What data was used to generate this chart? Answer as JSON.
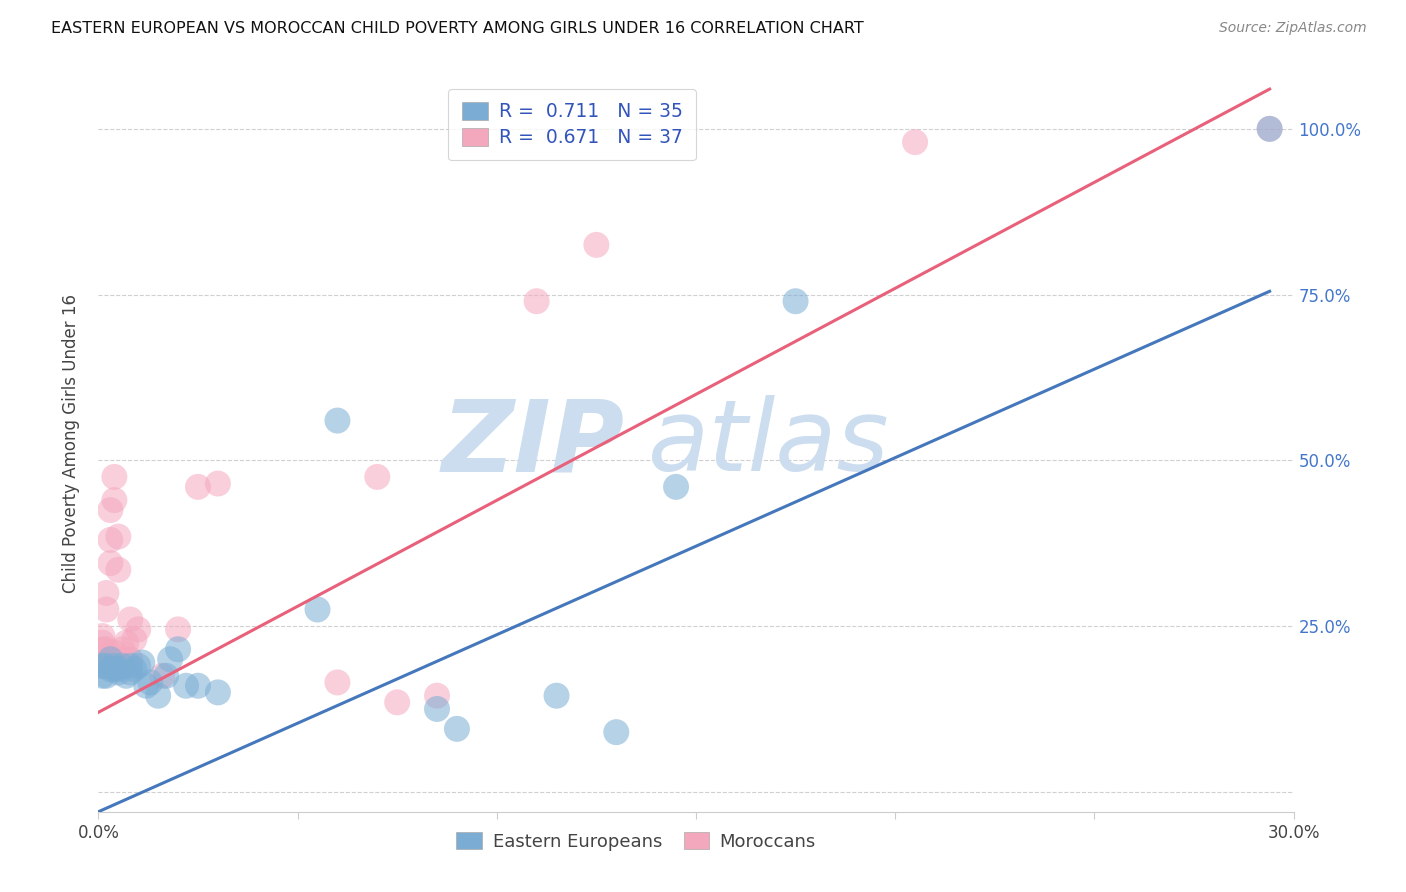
{
  "title": "EASTERN EUROPEAN VS MOROCCAN CHILD POVERTY AMONG GIRLS UNDER 16 CORRELATION CHART",
  "source": "Source: ZipAtlas.com",
  "ylabel": "Child Poverty Among Girls Under 16",
  "xlim": [
    0.0,
    0.3
  ],
  "ylim": [
    -0.03,
    1.08
  ],
  "ytick_positions": [
    0.0,
    0.25,
    0.5,
    0.75,
    1.0
  ],
  "xtick_positions": [
    0.0,
    0.05,
    0.1,
    0.15,
    0.2,
    0.25,
    0.3
  ],
  "xtick_labels": [
    "0.0%",
    "",
    "",
    "",
    "",
    "",
    "30.0%"
  ],
  "ytick_labels_right": [
    "",
    "25.0%",
    "50.0%",
    "75.0%",
    "100.0%"
  ],
  "blue_color": "#7BADD4",
  "pink_color": "#F4A8BE",
  "blue_line_color": "#4477BB",
  "pink_line_color": "#E8607A",
  "blue_r": "0.711",
  "blue_n": "35",
  "pink_r": "0.671",
  "pink_n": "37",
  "blue_scatter_x": [
    0.001,
    0.001,
    0.002,
    0.002,
    0.003,
    0.003,
    0.004,
    0.004,
    0.005,
    0.005,
    0.006,
    0.007,
    0.008,
    0.008,
    0.009,
    0.01,
    0.011,
    0.012,
    0.013,
    0.015,
    0.017,
    0.018,
    0.02,
    0.022,
    0.025,
    0.03,
    0.055,
    0.06,
    0.085,
    0.09,
    0.115,
    0.13,
    0.145,
    0.175,
    0.294
  ],
  "blue_scatter_y": [
    0.19,
    0.175,
    0.19,
    0.175,
    0.2,
    0.185,
    0.185,
    0.19,
    0.18,
    0.185,
    0.19,
    0.175,
    0.19,
    0.18,
    0.185,
    0.19,
    0.195,
    0.16,
    0.165,
    0.145,
    0.175,
    0.2,
    0.215,
    0.16,
    0.16,
    0.15,
    0.275,
    0.56,
    0.125,
    0.095,
    0.145,
    0.09,
    0.46,
    0.74,
    1.0
  ],
  "pink_scatter_x": [
    0.001,
    0.001,
    0.001,
    0.001,
    0.001,
    0.002,
    0.002,
    0.002,
    0.002,
    0.003,
    0.003,
    0.003,
    0.003,
    0.004,
    0.004,
    0.004,
    0.005,
    0.005,
    0.006,
    0.006,
    0.007,
    0.008,
    0.008,
    0.009,
    0.01,
    0.016,
    0.02,
    0.025,
    0.03,
    0.06,
    0.07,
    0.075,
    0.085,
    0.11,
    0.125,
    0.205,
    0.294
  ],
  "pink_scatter_y": [
    0.2,
    0.215,
    0.225,
    0.235,
    0.19,
    0.215,
    0.275,
    0.3,
    0.19,
    0.2,
    0.345,
    0.38,
    0.425,
    0.44,
    0.475,
    0.21,
    0.335,
    0.385,
    0.2,
    0.215,
    0.225,
    0.26,
    0.2,
    0.23,
    0.245,
    0.175,
    0.245,
    0.46,
    0.465,
    0.165,
    0.475,
    0.135,
    0.145,
    0.74,
    0.825,
    0.98,
    1.0
  ],
  "blue_line_x": [
    0.0,
    0.294
  ],
  "blue_line_y": [
    -0.03,
    0.755
  ],
  "pink_line_x": [
    0.0,
    0.294
  ],
  "pink_line_y": [
    0.12,
    1.06
  ],
  "watermark_zip": "ZIP",
  "watermark_atlas": "atlas"
}
